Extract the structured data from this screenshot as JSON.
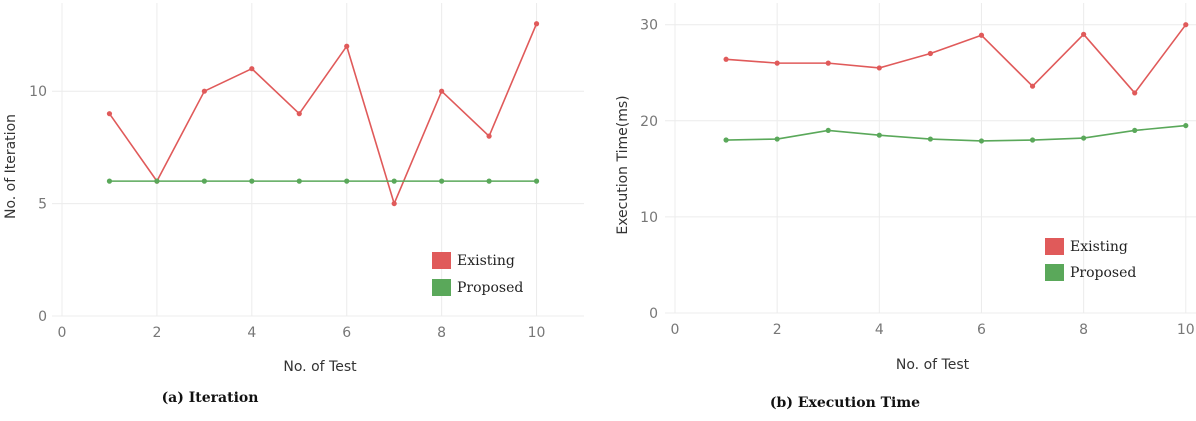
{
  "chart_data": [
    {
      "type": "line",
      "caption": "(a) Iteration",
      "xlabel": "No. of Test",
      "ylabel": "No. of Iteration",
      "xlim": [
        0,
        11
      ],
      "ylim": [
        0,
        13.3
      ],
      "xticks": [
        0,
        2,
        4,
        6,
        8,
        10
      ],
      "yticks": [
        0,
        5,
        10
      ],
      "grid": true,
      "legend_position": "bottom-right",
      "x": [
        1,
        2,
        3,
        4,
        5,
        6,
        7,
        8,
        9,
        10
      ],
      "series": [
        {
          "name": "Existing",
          "color": "#e05a5a",
          "values": [
            9,
            6,
            10,
            11,
            9,
            12,
            5,
            10,
            8,
            13
          ]
        },
        {
          "name": "Proposed",
          "color": "#5aa85a",
          "values": [
            6,
            6,
            6,
            6,
            6,
            6,
            6,
            6,
            6,
            6
          ]
        }
      ]
    },
    {
      "type": "line",
      "caption": "(b) Execution Time",
      "xlabel": "No. of Test",
      "ylabel": "Execution Time(ms)",
      "xlim": [
        0,
        10.2
      ],
      "ylim": [
        0,
        30.8
      ],
      "xticks": [
        0,
        2,
        4,
        6,
        8,
        10
      ],
      "yticks": [
        0,
        10,
        20,
        30
      ],
      "grid": true,
      "legend_position": "bottom-right",
      "x": [
        1,
        2,
        3,
        4,
        5,
        6,
        7,
        8,
        9,
        10
      ],
      "series": [
        {
          "name": "Existing",
          "color": "#e05a5a",
          "values": [
            26.4,
            26.0,
            26.0,
            25.5,
            27.0,
            28.9,
            23.6,
            29.0,
            22.9,
            30.0
          ]
        },
        {
          "name": "Proposed",
          "color": "#5aa85a",
          "values": [
            18.0,
            18.1,
            19.0,
            18.5,
            18.1,
            17.9,
            18.0,
            18.2,
            19.0,
            19.5
          ]
        }
      ]
    }
  ]
}
